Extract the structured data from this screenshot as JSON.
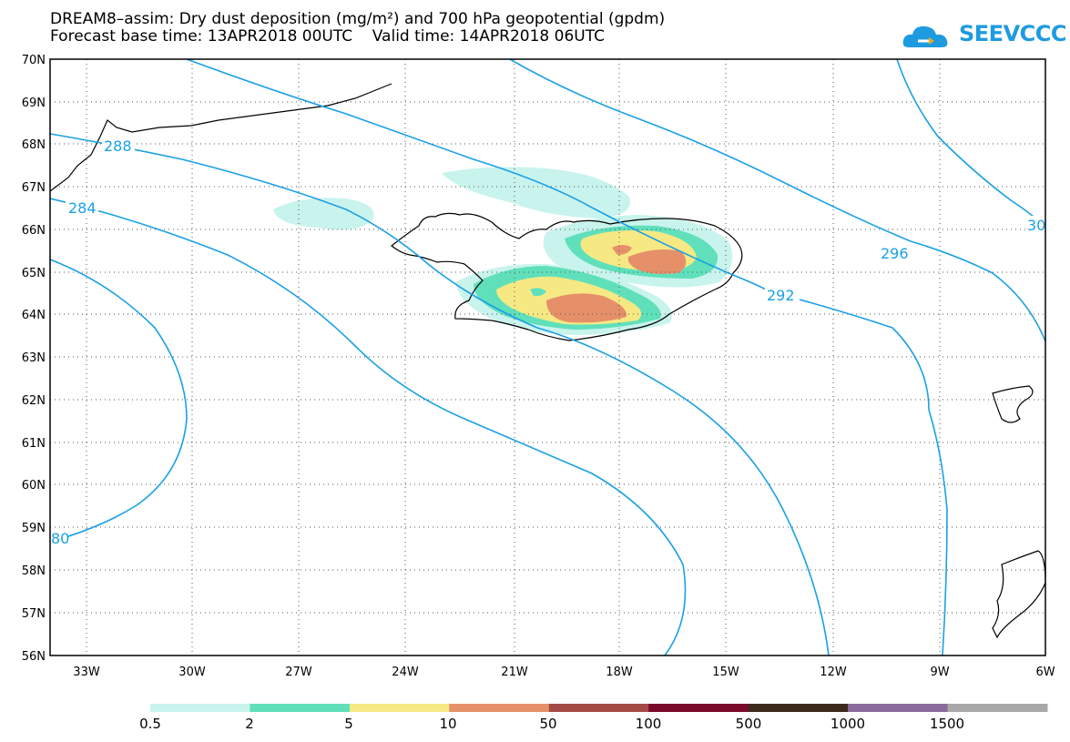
{
  "header": {
    "title_line1": "DREAM8–assim: Dry dust deposition (mg/m²) and 700 hPa geopotential (gpdm)",
    "title_line2": "Forecast base time: 13APR2018 00UTC    Valid time: 14APR2018 06UTC"
  },
  "logo": {
    "text": "SEEVCCC",
    "icon": "cloud-logo-icon",
    "color": "#1e9be0"
  },
  "map": {
    "lon_range": [
      -34.5,
      -6
    ],
    "lat_range": [
      56,
      70
    ],
    "lat_labels": [
      "70N",
      "69N",
      "68N",
      "67N",
      "66N",
      "65N",
      "64N",
      "63N",
      "62N",
      "61N",
      "60N",
      "59N",
      "58N",
      "57N",
      "56N"
    ],
    "lon_labels": [
      "33W",
      "30W",
      "27W",
      "24W",
      "21W",
      "18W",
      "15W",
      "12W",
      "9W",
      "6W"
    ],
    "contour_color": "#1aa0e6",
    "contour_labels": [
      "288",
      "284",
      "296",
      "292",
      "80",
      "30"
    ]
  },
  "colorbar": {
    "colors": [
      "#c9f3ed",
      "#5fe0bb",
      "#f6e984",
      "#e6906a",
      "#a44a44",
      "#7a0a2a",
      "#3e2a1c",
      "#8a6a9a",
      "#a8a8a8"
    ],
    "labels": [
      "0.5",
      "2",
      "5",
      "10",
      "50",
      "100",
      "500",
      "1000",
      "1500"
    ]
  }
}
